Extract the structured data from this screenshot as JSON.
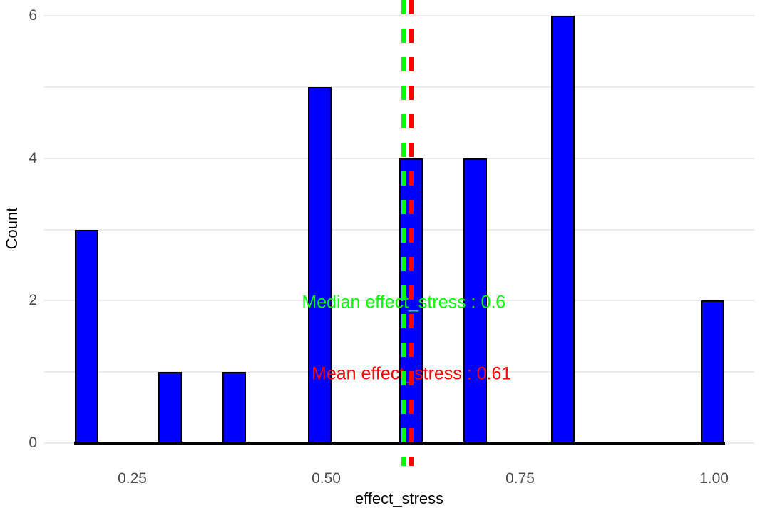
{
  "chart_data": {
    "type": "bar",
    "subtype": "histogram",
    "title": "",
    "xlabel": "effect_stress",
    "ylabel": "Count",
    "bin_centers": [
      0.191,
      0.299,
      0.381,
      0.492,
      0.609,
      0.692,
      0.805,
      0.998
    ],
    "counts": [
      3,
      1,
      1,
      5,
      4,
      4,
      6,
      2
    ],
    "binwidth": 0.028,
    "x_tick_values": [
      0.25,
      0.5,
      0.75,
      1.0
    ],
    "x_tick_labels": [
      "0.25",
      "0.50",
      "0.75",
      "1.00"
    ],
    "y_tick_values": [
      0,
      2,
      4,
      6
    ],
    "y_tick_labels": [
      "0",
      "2",
      "4",
      "6"
    ],
    "y_gridline_values": [
      0,
      1,
      2,
      3,
      4,
      5,
      6
    ],
    "xlim": [
      0.137,
      1.052
    ],
    "ylim": [
      0,
      6.22
    ],
    "grid": "horizontal-only",
    "legend": "none",
    "annotations": [
      {
        "id": "median",
        "text": "Median effect_stress : 0.6",
        "value": 0.6,
        "label_y": 2,
        "color": "#00FF00",
        "line_style": "dashed"
      },
      {
        "id": "mean",
        "text": "Mean effect_stress : 0.61",
        "value": 0.61,
        "label_y": 1,
        "color": "#FF0000",
        "line_style": "dashed"
      }
    ],
    "colors": {
      "bar_fill": "#0000FF",
      "bar_stroke": "#000000",
      "gridline": "#EBEBEB",
      "tick_label": "#4D4D4D",
      "axis_title": "#000000",
      "axis_line": "#000000",
      "background": "#FFFFFF"
    }
  }
}
